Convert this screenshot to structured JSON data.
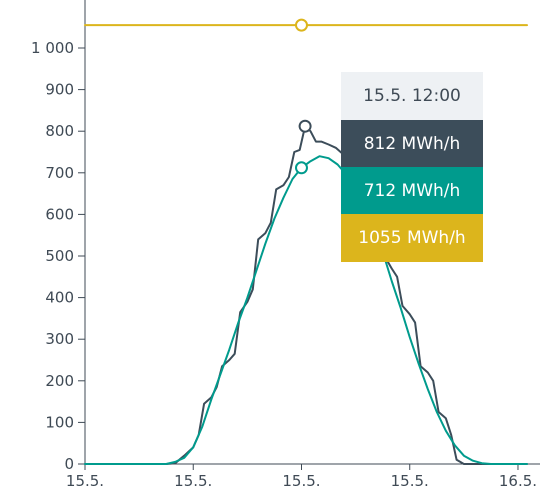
{
  "chart_data": {
    "type": "line",
    "title": "",
    "xlabel": "",
    "ylabel": "",
    "ylim": [
      0,
      1060
    ],
    "yticks": [
      0,
      100,
      200,
      300,
      400,
      500,
      600,
      700,
      800,
      900,
      1000
    ],
    "ytick_labels": [
      "0",
      "100",
      "200",
      "300",
      "400",
      "500",
      "600",
      "700",
      "800",
      "900",
      "1 000"
    ],
    "xlim": [
      0,
      24.5
    ],
    "xticks": [
      0,
      6,
      12,
      18,
      24
    ],
    "xtick_labels": [
      "15.5.",
      "15.5.",
      "15.5.",
      "15.5.",
      "16.5."
    ],
    "grid": false,
    "series": [
      {
        "color": "#3c4d5a",
        "points": [
          [
            0,
            0
          ],
          [
            4.5,
            0
          ],
          [
            5.0,
            2
          ],
          [
            5.5,
            20
          ],
          [
            6.0,
            40
          ],
          [
            6.3,
            70
          ],
          [
            6.6,
            145
          ],
          [
            7.0,
            160
          ],
          [
            7.3,
            185
          ],
          [
            7.6,
            235
          ],
          [
            8.0,
            250
          ],
          [
            8.3,
            265
          ],
          [
            8.6,
            365
          ],
          [
            9.0,
            390
          ],
          [
            9.3,
            420
          ],
          [
            9.6,
            540
          ],
          [
            10.0,
            555
          ],
          [
            10.3,
            580
          ],
          [
            10.6,
            660
          ],
          [
            11.0,
            670
          ],
          [
            11.3,
            690
          ],
          [
            11.6,
            750
          ],
          [
            11.9,
            755
          ],
          [
            12.2,
            812
          ],
          [
            12.5,
            800
          ],
          [
            12.8,
            775
          ],
          [
            13.1,
            775
          ],
          [
            13.5,
            768
          ],
          [
            13.9,
            760
          ],
          [
            14.3,
            745
          ],
          [
            14.7,
            730
          ],
          [
            15.1,
            700
          ],
          [
            15.5,
            650
          ],
          [
            15.9,
            630
          ],
          [
            16.3,
            590
          ],
          [
            16.6,
            500
          ],
          [
            17.0,
            470
          ],
          [
            17.3,
            450
          ],
          [
            17.6,
            380
          ],
          [
            18.0,
            360
          ],
          [
            18.3,
            340
          ],
          [
            18.6,
            235
          ],
          [
            19.0,
            220
          ],
          [
            19.3,
            200
          ],
          [
            19.6,
            125
          ],
          [
            20.0,
            110
          ],
          [
            20.3,
            70
          ],
          [
            20.6,
            10
          ],
          [
            21.0,
            0
          ],
          [
            24.5,
            0
          ]
        ]
      },
      {
        "color": "#009b8d",
        "points": [
          [
            0,
            0
          ],
          [
            4.5,
            0
          ],
          [
            5.0,
            5
          ],
          [
            5.5,
            15
          ],
          [
            6.0,
            40
          ],
          [
            6.5,
            90
          ],
          [
            7.0,
            155
          ],
          [
            7.5,
            215
          ],
          [
            8.0,
            275
          ],
          [
            8.5,
            340
          ],
          [
            9.0,
            400
          ],
          [
            9.5,
            465
          ],
          [
            10.0,
            530
          ],
          [
            10.5,
            590
          ],
          [
            11.0,
            640
          ],
          [
            11.5,
            685
          ],
          [
            12.0,
            712
          ],
          [
            12.5,
            728
          ],
          [
            13.0,
            740
          ],
          [
            13.5,
            735
          ],
          [
            14.0,
            720
          ],
          [
            14.5,
            695
          ],
          [
            15.0,
            660
          ],
          [
            15.5,
            620
          ],
          [
            16.0,
            570
          ],
          [
            16.5,
            510
          ],
          [
            17.0,
            440
          ],
          [
            17.5,
            375
          ],
          [
            18.0,
            305
          ],
          [
            18.5,
            240
          ],
          [
            19.0,
            180
          ],
          [
            19.5,
            125
          ],
          [
            20.0,
            80
          ],
          [
            20.5,
            45
          ],
          [
            21.0,
            20
          ],
          [
            21.5,
            8
          ],
          [
            22.0,
            2
          ],
          [
            22.5,
            0
          ],
          [
            24.5,
            0
          ]
        ]
      },
      {
        "color": "#dcb51c",
        "points": [
          [
            0,
            1055
          ],
          [
            24.5,
            1055
          ]
        ]
      }
    ],
    "highlight": {
      "x": 12,
      "markers": [
        {
          "series": 0,
          "x": 12.2,
          "y": 812
        },
        {
          "series": 1,
          "x": 12.0,
          "y": 712
        },
        {
          "series": 2,
          "x": 12.0,
          "y": 1055
        }
      ]
    },
    "tooltip": {
      "time": "15.5. 12:00",
      "values": [
        "812 MWh/h",
        "712 MWh/h",
        "1055 MWh/h"
      ]
    }
  }
}
